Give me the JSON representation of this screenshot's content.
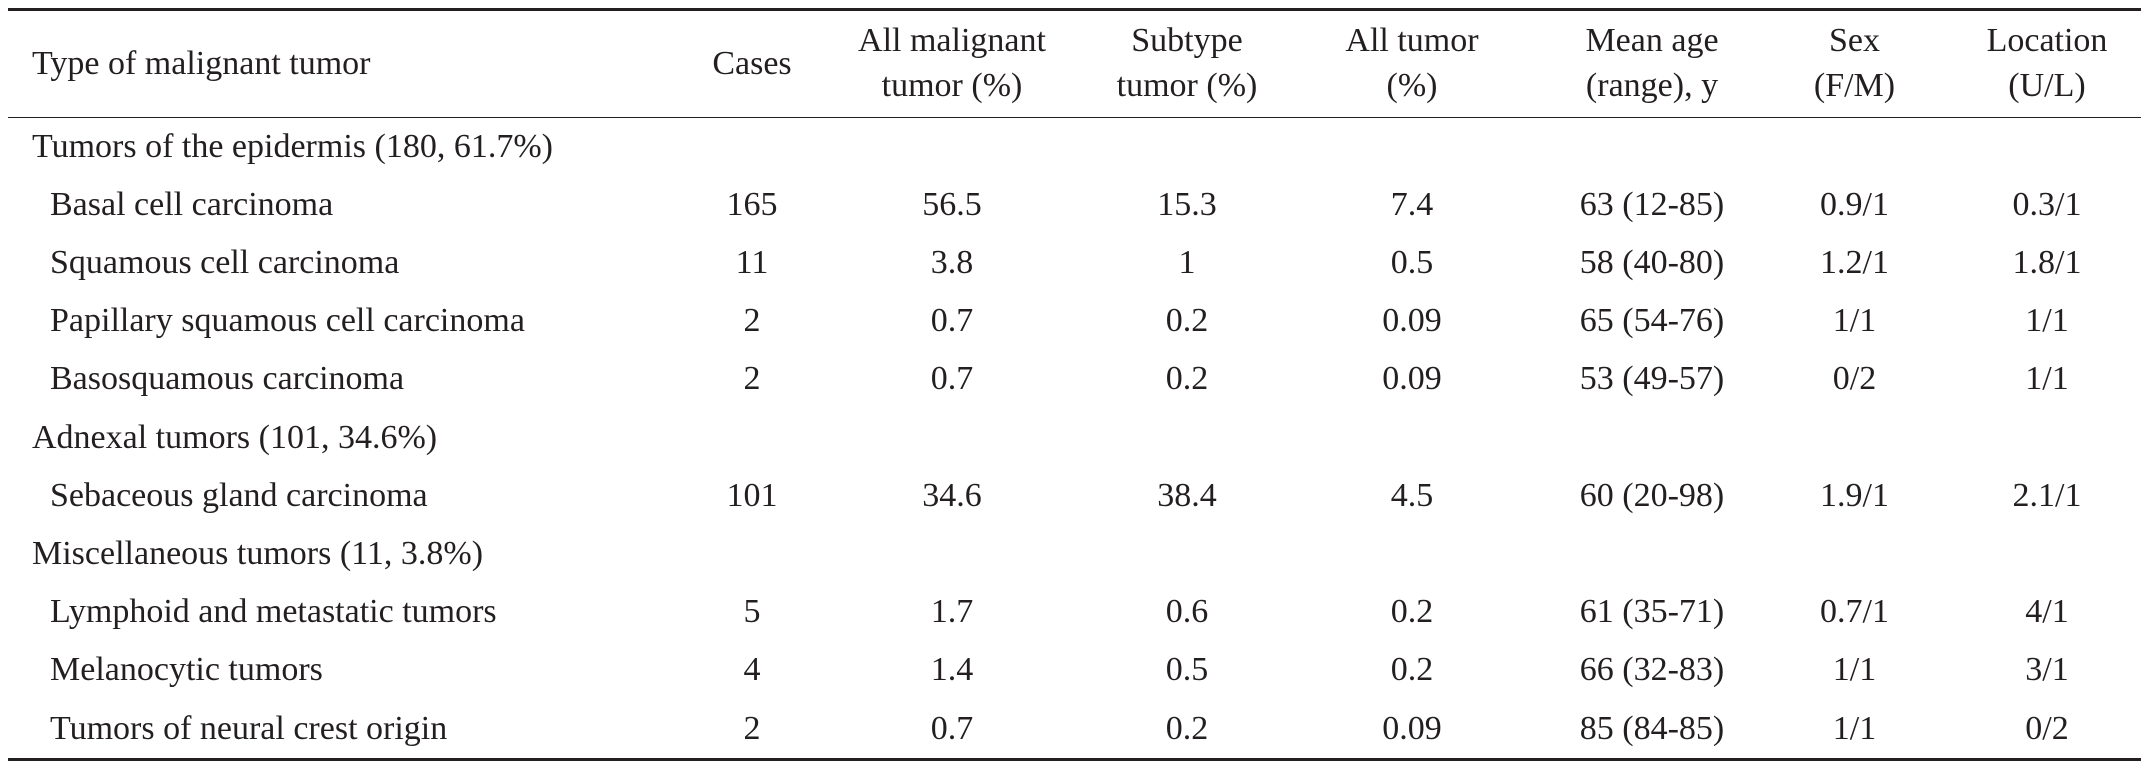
{
  "header": {
    "type": "Type of malignant tumor",
    "cases": "Cases",
    "all_malignant_1": "All malignant",
    "all_malignant_2": "tumor (%)",
    "subtype_1": "Subtype",
    "subtype_2": "tumor (%)",
    "all_tumor_1": "All tumor",
    "all_tumor_2": "(%)",
    "mean_age_1": "Mean age",
    "mean_age_2": "(range), y",
    "sex_1": "Sex",
    "sex_2": "(F/M)",
    "location_1": "Location",
    "location_2": "(U/L)"
  },
  "groups": [
    {
      "title": "Tumors of the epidermis (180, 61.7%)",
      "rows": [
        {
          "name": "Basal cell carcinoma",
          "cases": "165",
          "all_malignant": "56.5",
          "subtype": "15.3",
          "all_tumor": "7.4",
          "mean_age": "63 (12-85)",
          "sex": "0.9/1",
          "location": "0.3/1"
        },
        {
          "name": "Squamous cell carcinoma",
          "cases": "11",
          "all_malignant": "3.8",
          "subtype": "1",
          "all_tumor": "0.5",
          "mean_age": "58 (40-80)",
          "sex": "1.2/1",
          "location": "1.8/1"
        },
        {
          "name": "Papillary squamous cell carcinoma",
          "cases": "2",
          "all_malignant": "0.7",
          "subtype": "0.2",
          "all_tumor": "0.09",
          "mean_age": "65 (54-76)",
          "sex": "1/1",
          "location": "1/1"
        },
        {
          "name": "Basosquamous carcinoma",
          "cases": "2",
          "all_malignant": "0.7",
          "subtype": "0.2",
          "all_tumor": "0.09",
          "mean_age": "53 (49-57)",
          "sex": "0/2",
          "location": "1/1"
        }
      ]
    },
    {
      "title": "Adnexal tumors (101, 34.6%)",
      "rows": [
        {
          "name": "Sebaceous gland carcinoma",
          "cases": "101",
          "all_malignant": "34.6",
          "subtype": "38.4",
          "all_tumor": "4.5",
          "mean_age": "60 (20-98)",
          "sex": "1.9/1",
          "location": "2.1/1"
        }
      ]
    },
    {
      "title": "Miscellaneous tumors (11, 3.8%)",
      "rows": [
        {
          "name": "Lymphoid and metastatic tumors",
          "cases": "5",
          "all_malignant": "1.7",
          "subtype": "0.6",
          "all_tumor": "0.2",
          "mean_age": "61 (35-71)",
          "sex": "0.7/1",
          "location": "4/1"
        },
        {
          "name": "Melanocytic tumors",
          "cases": "4",
          "all_malignant": "1.4",
          "subtype": "0.5",
          "all_tumor": "0.2",
          "mean_age": "66 (32-83)",
          "sex": "1/1",
          "location": "3/1"
        },
        {
          "name": "Tumors of neural crest origin",
          "cases": "2",
          "all_malignant": "0.7",
          "subtype": "0.2",
          "all_tumor": "0.09",
          "mean_age": "85 (84-85)",
          "sex": "1/1",
          "location": "0/2"
        }
      ]
    }
  ]
}
